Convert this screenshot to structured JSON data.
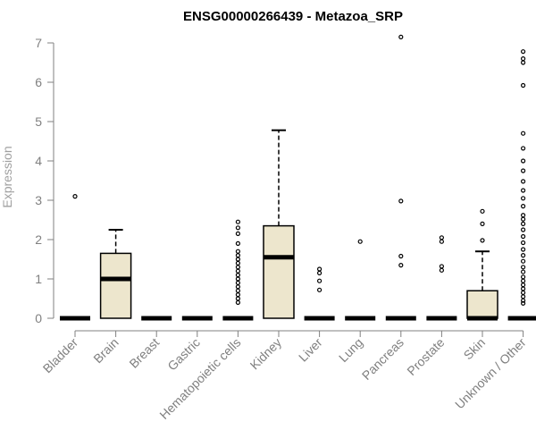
{
  "chart_data": {
    "type": "boxplot",
    "title": "ENSG00000266439 - Metazoa_SRP",
    "ylabel": "Expression",
    "xlabel": "",
    "ylim": [
      0,
      7
    ],
    "yticks": [
      0,
      1,
      2,
      3,
      4,
      5,
      6,
      7
    ],
    "grid": false,
    "colors": {
      "box_fill": "#ede6cd",
      "stroke": "#000000",
      "axis": "#808080"
    },
    "categories": [
      "Bladder",
      "Brain",
      "Breast",
      "Gastric",
      "Hematopoietic cells",
      "Kidney",
      "Liver",
      "Lung",
      "Pancreas",
      "Prostate",
      "Skin",
      "Unknown / Other"
    ],
    "boxes": [
      {
        "q1": 0,
        "median": 0,
        "q3": 0,
        "whisker_low": 0,
        "whisker_high": 0,
        "outliers": [
          3.1
        ]
      },
      {
        "q1": 0,
        "median": 1.0,
        "q3": 1.65,
        "whisker_low": 0,
        "whisker_high": 2.25,
        "outliers": []
      },
      {
        "q1": 0,
        "median": 0,
        "q3": 0,
        "whisker_low": 0,
        "whisker_high": 0,
        "outliers": []
      },
      {
        "q1": 0,
        "median": 0,
        "q3": 0,
        "whisker_low": 0,
        "whisker_high": 0,
        "outliers": []
      },
      {
        "q1": 0,
        "median": 0,
        "q3": 0,
        "whisker_low": 0,
        "whisker_high": 0,
        "outliers": [
          2.45,
          2.3,
          2.15,
          1.9,
          1.7,
          1.6,
          1.5,
          1.4,
          1.3,
          1.2,
          1.1,
          1.0,
          0.9,
          0.8,
          0.7,
          0.6,
          0.5,
          0.4
        ]
      },
      {
        "q1": 0,
        "median": 1.55,
        "q3": 2.35,
        "whisker_low": 0,
        "whisker_high": 4.78,
        "outliers": []
      },
      {
        "q1": 0,
        "median": 0,
        "q3": 0,
        "whisker_low": 0,
        "whisker_high": 0,
        "outliers": [
          1.25,
          1.15,
          0.95,
          0.72
        ]
      },
      {
        "q1": 0,
        "median": 0,
        "q3": 0,
        "whisker_low": 0,
        "whisker_high": 0,
        "outliers": [
          1.95
        ]
      },
      {
        "q1": 0,
        "median": 0,
        "q3": 0,
        "whisker_low": 0,
        "whisker_high": 0,
        "outliers": [
          7.15,
          2.98,
          1.58,
          1.35
        ]
      },
      {
        "q1": 0,
        "median": 0,
        "q3": 0,
        "whisker_low": 0,
        "whisker_high": 0,
        "outliers": [
          2.05,
          1.95,
          1.32,
          1.22
        ]
      },
      {
        "q1": 0,
        "median": 0,
        "q3": 0.7,
        "whisker_low": 0,
        "whisker_high": 1.7,
        "outliers": [
          2.72,
          2.4,
          1.98
        ]
      },
      {
        "q1": 0,
        "median": 0,
        "q3": 0,
        "whisker_low": 0,
        "whisker_high": 0,
        "outliers": [
          6.78,
          6.6,
          6.5,
          5.92,
          4.7,
          4.32,
          4.0,
          3.75,
          3.48,
          3.25,
          3.05,
          2.85,
          2.62,
          2.52,
          2.4,
          2.25,
          2.08,
          1.92,
          1.75,
          1.6,
          1.45,
          1.3,
          1.18,
          1.05,
          0.95,
          0.85,
          0.75,
          0.65,
          0.55,
          0.45,
          0.38
        ]
      }
    ]
  }
}
